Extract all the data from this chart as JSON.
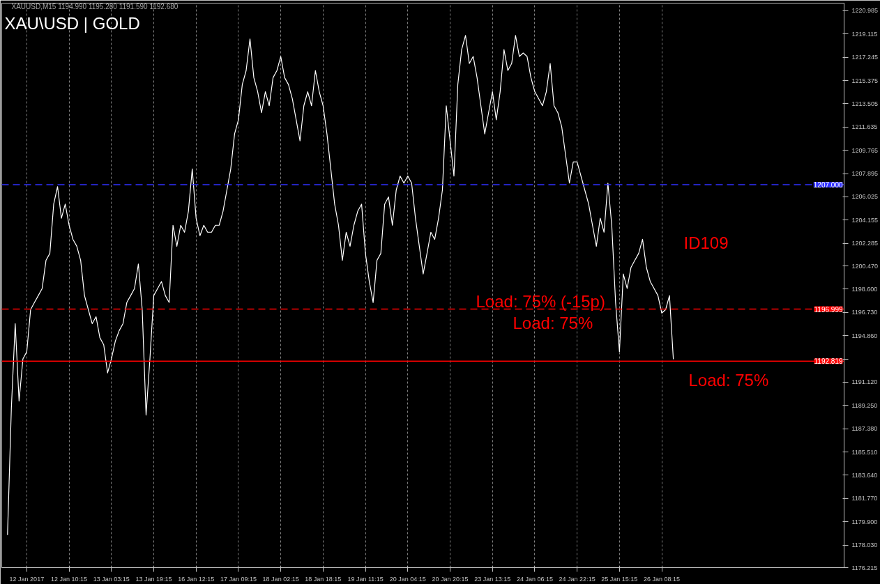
{
  "chart_data": {
    "type": "line",
    "title": "XAU\\USD | GOLD",
    "annotations": [
      "XAUUSD,M15  1194.990 1195.280 1191.590 1192.680",
      "ID109",
      "Load: 75% (-15p)",
      "Load: 75%",
      "Load: 75%"
    ],
    "categories": [
      null,
      null,
      null,
      null,
      null,
      "12 Jan 2017",
      null,
      null,
      null,
      null,
      null,
      null,
      null,
      null,
      null,
      null,
      "12 Jan 10:15",
      null,
      null,
      null,
      null,
      null,
      null,
      null,
      null,
      null,
      null,
      "13 Jan 03:15",
      null,
      null,
      null,
      null,
      null,
      null,
      null,
      null,
      null,
      null,
      "13 Jan 19:15",
      null,
      null,
      null,
      null,
      null,
      null,
      null,
      null,
      null,
      null,
      "16 Jan 12:15",
      null,
      null,
      null,
      null,
      null,
      null,
      null,
      null,
      null,
      null,
      "17 Jan 09:15",
      null,
      null,
      null,
      null,
      null,
      null,
      null,
      null,
      null,
      null,
      "18 Jan 02:15",
      null,
      null,
      null,
      null,
      null,
      null,
      null,
      null,
      null,
      null,
      "18 Jan 18:15",
      null,
      null,
      null,
      null,
      null,
      null,
      null,
      null,
      null,
      null,
      "19 Jan 11:15",
      null,
      null,
      null,
      null,
      null,
      null,
      null,
      null,
      null,
      null,
      "20 Jan 04:15",
      null,
      null,
      null,
      null,
      null,
      null,
      null,
      null,
      null,
      null,
      "20 Jan 20:15",
      null,
      null,
      null,
      null,
      null,
      null,
      null,
      null,
      null,
      null,
      "23 Jan 13:15",
      null,
      null,
      null,
      null,
      null,
      null,
      null,
      null,
      null,
      null,
      "24 Jan 06:15",
      null,
      null,
      null,
      null,
      null,
      null,
      null,
      null,
      null,
      null,
      "24 Jan 22:15",
      null,
      null,
      null,
      null,
      null,
      null,
      null,
      null,
      null,
      null,
      "25 Jan 15:15",
      null,
      null,
      null,
      null,
      null,
      null,
      null,
      null,
      null,
      null,
      "26 Jan 08:15",
      null,
      null,
      null
    ],
    "series": [
      {
        "color": "#ffffff",
        "values": [
          1178.87,
          1189.05,
          1195.83,
          1189.61,
          1193.0,
          1193.57,
          1196.96,
          1197.53,
          1198.09,
          1198.66,
          1200.92,
          1201.48,
          1205.44,
          1206.85,
          1204.31,
          1205.44,
          1203.74,
          1202.61,
          1202.05,
          1200.92,
          1198.09,
          1196.96,
          1195.83,
          1196.39,
          1194.7,
          1194.13,
          1191.87,
          1193.0,
          1194.41,
          1195.26,
          1195.83,
          1197.53,
          1198.09,
          1198.66,
          1200.63,
          1196.96,
          1188.48,
          1193.0,
          1198.09,
          1198.66,
          1199.22,
          1198.09,
          1197.53,
          1203.74,
          1202.05,
          1203.74,
          1203.18,
          1204.87,
          1208.27,
          1204.31,
          1202.9,
          1203.74,
          1203.18,
          1203.18,
          1203.74,
          1203.74,
          1204.87,
          1206.57,
          1208.27,
          1211.09,
          1212.22,
          1215.05,
          1216.18,
          1218.72,
          1215.61,
          1214.48,
          1212.79,
          1214.48,
          1213.35,
          1215.61,
          1216.18,
          1217.31,
          1215.61,
          1215.05,
          1213.92,
          1212.22,
          1210.53,
          1213.35,
          1214.48,
          1213.35,
          1216.18,
          1214.48,
          1213.35,
          1211.09,
          1208.27,
          1205.44,
          1203.74,
          1200.92,
          1203.18,
          1202.05,
          1203.74,
          1204.87,
          1205.44,
          1201.48,
          1199.22,
          1197.53,
          1200.92,
          1201.48,
          1205.44,
          1206.02,
          1203.74,
          1206.57,
          1207.7,
          1207.13,
          1207.7,
          1207.13,
          1204.31,
          1202.05,
          1199.82,
          1201.48,
          1203.18,
          1202.61,
          1204.31,
          1206.57,
          1213.35,
          1210.53,
          1207.7,
          1215.05,
          1217.87,
          1219.0,
          1216.75,
          1217.31,
          1215.61,
          1213.35,
          1211.09,
          1212.79,
          1214.48,
          1212.22,
          1214.48,
          1217.87,
          1216.18,
          1216.75,
          1219.0,
          1217.31,
          1217.59,
          1217.31,
          1215.61,
          1214.48,
          1213.92,
          1213.35,
          1214.48,
          1216.75,
          1213.35,
          1212.79,
          1211.66,
          1209.4,
          1207.13,
          1208.83,
          1208.83,
          1207.7,
          1206.57,
          1205.44,
          1203.74,
          1202.05,
          1204.31,
          1203.18,
          1207.13,
          1203.74,
          1197.53,
          1193.57,
          1199.82,
          1198.66,
          1200.35,
          1200.92,
          1201.48,
          1202.61,
          1200.35,
          1199.22,
          1198.66,
          1198.09,
          1196.68,
          1196.96,
          1198.09,
          1193.0
        ]
      }
    ],
    "ylim": [
      1176.215,
      1221.6
    ],
    "yticks": [
      {
        "value": 1176.215,
        "label": "1176.215"
      },
      {
        "value": 1178.03,
        "label": "1178.030"
      },
      {
        "value": 1179.9,
        "label": "1179.900"
      },
      {
        "value": 1181.77,
        "label": "1181.770"
      },
      {
        "value": 1183.64,
        "label": "1183.640"
      },
      {
        "value": 1185.51,
        "label": "1185.510"
      },
      {
        "value": 1187.38,
        "label": "1187.380"
      },
      {
        "value": 1189.25,
        "label": "1189.250"
      },
      {
        "value": 1191.12,
        "label": "1191.120"
      },
      {
        "value": 1192.99,
        "label": null
      },
      {
        "value": 1194.86,
        "label": "1194.860"
      },
      {
        "value": 1196.73,
        "label": "1196.730"
      },
      {
        "value": 1198.6,
        "label": "1198.600"
      },
      {
        "value": 1200.47,
        "label": "1200.470"
      },
      1202.285,
      1204.155,
      1206.025,
      1207.895,
      1209.765,
      1211.635,
      1213.505,
      1215.375,
      1217.245,
      1219.115,
      1220.985
    ],
    "ref_lines": [
      {
        "axis": "y",
        "value": 1207.0,
        "label": "1207.000",
        "color": "#3030ff",
        "line_style": "dashed"
      },
      {
        "axis": "y",
        "value": 1196.999,
        "label": "1196.999",
        "color": "#ff0000",
        "line_style": "dashed"
      },
      {
        "axis": "y",
        "value": 1192.819,
        "label": "1192.819",
        "color": "#ff0000",
        "line_style": "solid"
      }
    ],
    "grid": "x"
  }
}
